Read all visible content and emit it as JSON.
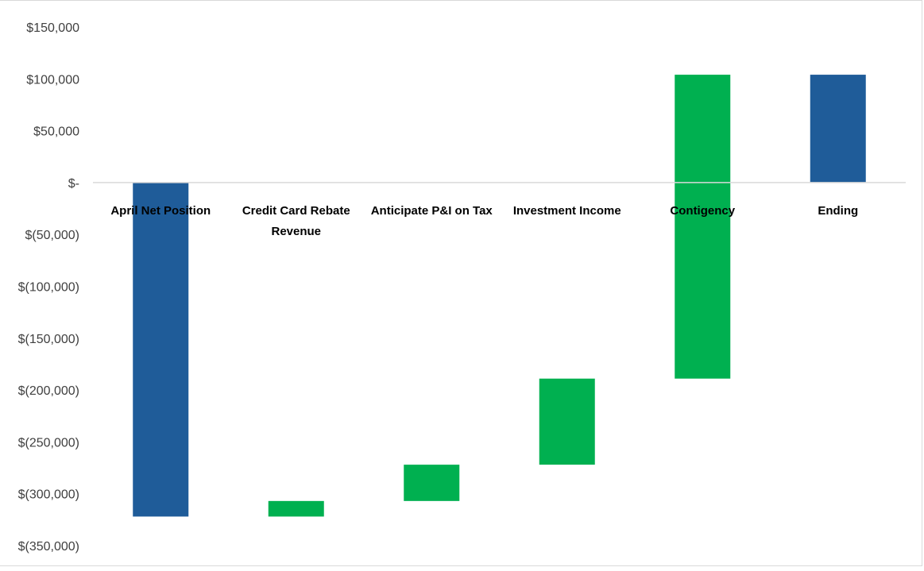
{
  "chart_data": {
    "type": "bar",
    "subtype": "waterfall",
    "title": "",
    "xlabel": "",
    "ylabel": "",
    "ylim": [
      -350000,
      150000
    ],
    "y_ticks": [
      150000,
      100000,
      50000,
      0,
      -50000,
      -100000,
      -150000,
      -200000,
      -250000,
      -300000,
      -350000
    ],
    "y_tick_labels": [
      "$150,000",
      "$100,000",
      "$50,000",
      "$-",
      "$(50,000)",
      "$(100,000)",
      "$(150,000)",
      "$(200,000)",
      "$(250,000)",
      "$(300,000)",
      "$(350,000)"
    ],
    "categories": [
      "April Net Position",
      "Credit Card Rebate Revenue",
      "Anticipate P&I on Tax",
      "Investment Income",
      "Contigency",
      "Ending"
    ],
    "category_label_lines": [
      [
        "April Net Position"
      ],
      [
        "Credit Card Rebate",
        "Revenue"
      ],
      [
        "Anticipate P&I on Tax"
      ],
      [
        "Investment Income"
      ],
      [
        "Contigency"
      ],
      [
        "Ending"
      ]
    ],
    "bars": [
      {
        "category": "April Net Position",
        "kind": "total",
        "start": 0,
        "end": -322000,
        "color": "#1f5c99"
      },
      {
        "category": "Credit Card Rebate Revenue",
        "kind": "increase",
        "start": -322000,
        "end": -307000,
        "color": "#00b050"
      },
      {
        "category": "Anticipate P&I on Tax",
        "kind": "increase",
        "start": -307000,
        "end": -272000,
        "color": "#00b050"
      },
      {
        "category": "Investment Income",
        "kind": "increase",
        "start": -272000,
        "end": -189000,
        "color": "#00b050"
      },
      {
        "category": "Contigency",
        "kind": "increase",
        "start": -189000,
        "end": 104000,
        "color": "#00b050"
      },
      {
        "category": "Ending",
        "kind": "total",
        "start": 0,
        "end": 104000,
        "color": "#1f5c99"
      }
    ],
    "grid": false,
    "legend": "none",
    "colors": {
      "total": "#1f5c99",
      "increase": "#00b050",
      "axis": "#d9d9d9"
    }
  }
}
